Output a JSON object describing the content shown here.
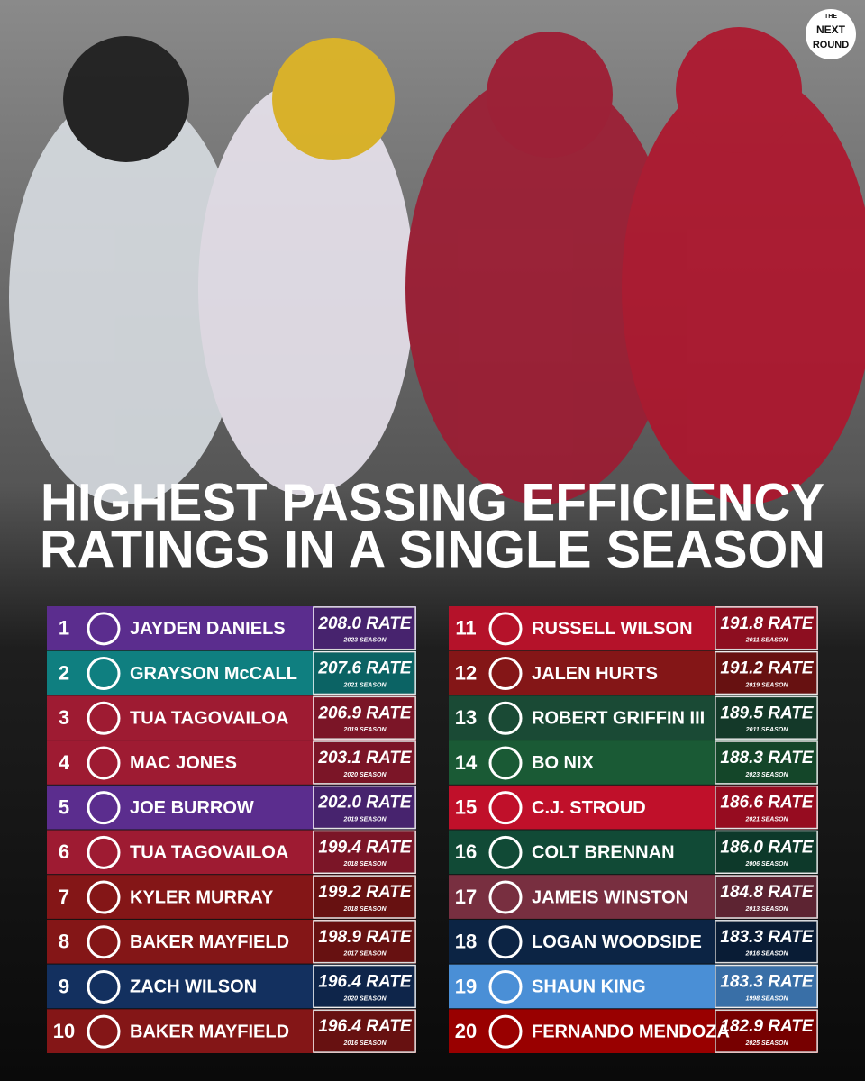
{
  "brand": [
    "THE",
    "NEXT",
    "ROUND"
  ],
  "title": [
    "HIGHEST PASSING EFFICIENCY",
    "RATINGS IN A SINGLE SEASON"
  ],
  "rows": [
    {
      "rank": 1,
      "name": "JAYDEN DANIELS",
      "rate": "208.0 RATE",
      "season": "2023 SEASON",
      "color": "#5b2d8e"
    },
    {
      "rank": 2,
      "name": "GRAYSON McCALL",
      "rate": "207.6 RATE",
      "season": "2021 SEASON",
      "color": "#0f7f80"
    },
    {
      "rank": 3,
      "name": "TUA TAGOVAILOA",
      "rate": "206.9 RATE",
      "season": "2019 SEASON",
      "color": "#9e1b32"
    },
    {
      "rank": 4,
      "name": "MAC JONES",
      "rate": "203.1 RATE",
      "season": "2020 SEASON",
      "color": "#9e1b32"
    },
    {
      "rank": 5,
      "name": "JOE BURROW",
      "rate": "202.0 RATE",
      "season": "2019 SEASON",
      "color": "#5b2d8e"
    },
    {
      "rank": 6,
      "name": "TUA TAGOVAILOA",
      "rate": "199.4 RATE",
      "season": "2018 SEASON",
      "color": "#9e1b32"
    },
    {
      "rank": 7,
      "name": "KYLER MURRAY",
      "rate": "199.2 RATE",
      "season": "2018 SEASON",
      "color": "#841617"
    },
    {
      "rank": 8,
      "name": "BAKER MAYFIELD",
      "rate": "198.9 RATE",
      "season": "2017 SEASON",
      "color": "#841617"
    },
    {
      "rank": 9,
      "name": "ZACH WILSON",
      "rate": "196.4 RATE",
      "season": "2020 SEASON",
      "color": "#13305f"
    },
    {
      "rank": 10,
      "name": "BAKER MAYFIELD",
      "rate": "196.4 RATE",
      "season": "2016 SEASON",
      "color": "#841617"
    },
    {
      "rank": 11,
      "name": "RUSSELL WILSON",
      "rate": "191.8 RATE",
      "season": "2011 SEASON",
      "color": "#b5122a"
    },
    {
      "rank": 12,
      "name": "JALEN HURTS",
      "rate": "191.2 RATE",
      "season": "2019 SEASON",
      "color": "#841617"
    },
    {
      "rank": 13,
      "name": "ROBERT GRIFFIN III",
      "rate": "189.5 RATE",
      "season": "2011 SEASON",
      "color": "#1a4a35"
    },
    {
      "rank": 14,
      "name": "BO NIX",
      "rate": "188.3 RATE",
      "season": "2023 SEASON",
      "color": "#1a5a35"
    },
    {
      "rank": 15,
      "name": "C.J. STROUD",
      "rate": "186.6 RATE",
      "season": "2021 SEASON",
      "color": "#c0102a"
    },
    {
      "rank": 16,
      "name": "COLT BRENNAN",
      "rate": "186.0 RATE",
      "season": "2006 SEASON",
      "color": "#114a36"
    },
    {
      "rank": 17,
      "name": "JAMEIS WINSTON",
      "rate": "184.8 RATE",
      "season": "2013 SEASON",
      "color": "#782f40"
    },
    {
      "rank": 18,
      "name": "LOGAN WOODSIDE",
      "rate": "183.3 RATE",
      "season": "2016 SEASON",
      "color": "#0c2444"
    },
    {
      "rank": 19,
      "name": "SHAUN KING",
      "rate": "183.3 RATE",
      "season": "1998 SEASON",
      "color": "#4a8fd6"
    },
    {
      "rank": 20,
      "name": "FERNANDO MENDOZA",
      "rate": "182.9 RATE",
      "season": "2025 SEASON",
      "color": "#990000"
    }
  ]
}
